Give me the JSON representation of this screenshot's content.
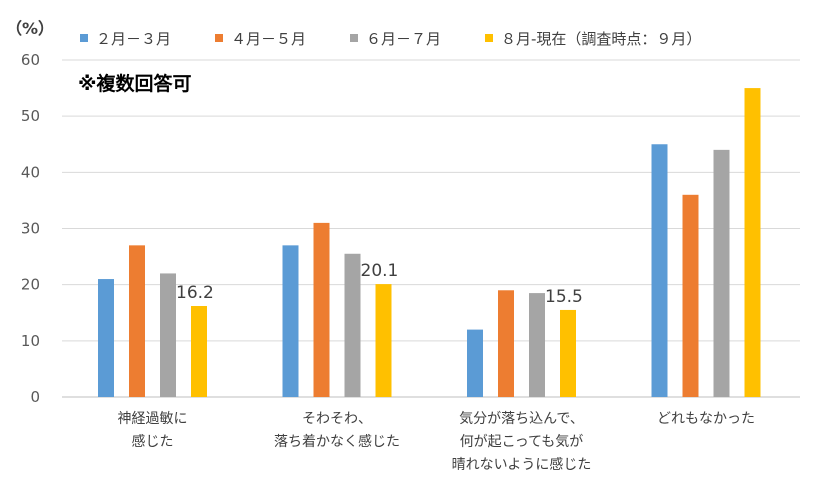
{
  "chart_data": {
    "type": "bar",
    "unit_label": "（%）",
    "note": "※複数回答可",
    "ylim": [
      0,
      60
    ],
    "yticks": [
      0,
      10,
      20,
      30,
      40,
      50,
      60
    ],
    "grid": true,
    "legend_position": "top",
    "categories": [
      [
        "神経過敏に",
        "感じた"
      ],
      [
        "そわそわ、",
        "落ち着かなく感じた"
      ],
      [
        "気分が落ち込んで、",
        "何が起こっても気が",
        "晴れないように感じた"
      ],
      [
        "どれもなかった"
      ]
    ],
    "series": [
      {
        "name": "２月－３月",
        "color": "#5B9BD5",
        "values": [
          21,
          27,
          12,
          45
        ]
      },
      {
        "name": "４月－５月",
        "color": "#ED7D31",
        "values": [
          27,
          31,
          19,
          36
        ]
      },
      {
        "name": "６月－７月",
        "color": "#A5A5A5",
        "values": [
          22,
          25.5,
          18.5,
          44
        ]
      },
      {
        "name": "８月-現在（調査時点：９月）",
        "color": "#FFC000",
        "values": [
          16.2,
          20.1,
          15.5,
          55
        ]
      }
    ],
    "data_labels": [
      {
        "series": 3,
        "category": 0,
        "text": "16.2"
      },
      {
        "series": 3,
        "category": 1,
        "text": "20.1"
      },
      {
        "series": 3,
        "category": 2,
        "text": "15.5"
      }
    ]
  }
}
